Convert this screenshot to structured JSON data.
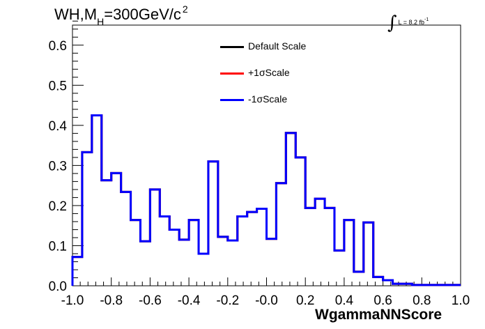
{
  "header": {
    "title_main": "WH,M",
    "title_sub": "H",
    "title_rest": "=300GeV/c",
    "title_sup": "2",
    "lumi_text": "L = 8.2 fb",
    "lumi_sup": "-1",
    "integral_sign": "∫"
  },
  "legend": {
    "items": [
      {
        "label": "Default Scale",
        "color": "#000000"
      },
      {
        "label": "+1σScale",
        "color": "#ff0000"
      },
      {
        "label": "-1σScale",
        "color": "#0000ff"
      }
    ]
  },
  "chart_data": {
    "type": "line",
    "style": "step histogram",
    "title": "WH,MH=300GeV/c2",
    "xlabel": "WgammaNNScore",
    "ylabel": "",
    "xlim": [
      -1.0,
      1.0
    ],
    "ylim": [
      0.0,
      0.65
    ],
    "x_ticks": [
      "-1.0",
      "-0.8",
      "-0.6",
      "-0.4",
      "-0.2",
      "-0.0",
      "0.2",
      "0.4",
      "0.6",
      "0.8",
      "1.0"
    ],
    "y_ticks": [
      "0.0",
      "0.1",
      "0.2",
      "0.3",
      "0.4",
      "0.5",
      "0.6"
    ],
    "bin_edges": [
      -1.0,
      -0.95,
      -0.9,
      -0.85,
      -0.8,
      -0.75,
      -0.7,
      -0.65,
      -0.6,
      -0.55,
      -0.5,
      -0.45,
      -0.4,
      -0.35,
      -0.3,
      -0.25,
      -0.2,
      -0.15,
      -0.1,
      -0.05,
      0.0,
      0.05,
      0.1,
      0.15,
      0.2,
      0.25,
      0.3,
      0.35,
      0.4,
      0.45,
      0.5,
      0.55,
      0.6,
      0.65,
      0.7,
      0.75,
      0.8,
      0.85,
      0.9,
      0.95,
      1.0
    ],
    "series": [
      {
        "name": "Default Scale",
        "color": "#000000",
        "values": [
          0.072,
          0.333,
          0.425,
          0.263,
          0.281,
          0.234,
          0.164,
          0.111,
          0.24,
          0.173,
          0.14,
          0.115,
          0.164,
          0.08,
          0.31,
          0.122,
          0.113,
          0.173,
          0.184,
          0.192,
          0.117,
          0.256,
          0.381,
          0.32,
          0.194,
          0.217,
          0.194,
          0.088,
          0.164,
          0.035,
          0.158,
          0.022,
          0.014,
          0.005,
          0.005,
          0.002,
          0.002,
          0.002,
          0.002,
          0.002
        ]
      },
      {
        "name": "+1σScale",
        "color": "#ff0000",
        "values": [
          0.072,
          0.333,
          0.425,
          0.263,
          0.281,
          0.234,
          0.164,
          0.111,
          0.24,
          0.173,
          0.14,
          0.115,
          0.164,
          0.08,
          0.31,
          0.122,
          0.113,
          0.173,
          0.184,
          0.192,
          0.117,
          0.256,
          0.381,
          0.32,
          0.194,
          0.217,
          0.194,
          0.088,
          0.164,
          0.035,
          0.158,
          0.022,
          0.014,
          0.005,
          0.005,
          0.002,
          0.002,
          0.002,
          0.002,
          0.002
        ]
      },
      {
        "name": "-1σScale",
        "color": "#0000ff",
        "values": [
          0.072,
          0.333,
          0.425,
          0.263,
          0.281,
          0.234,
          0.164,
          0.111,
          0.24,
          0.173,
          0.14,
          0.115,
          0.164,
          0.08,
          0.31,
          0.122,
          0.113,
          0.173,
          0.184,
          0.192,
          0.117,
          0.256,
          0.381,
          0.32,
          0.194,
          0.217,
          0.194,
          0.088,
          0.164,
          0.035,
          0.158,
          0.022,
          0.014,
          0.005,
          0.005,
          0.002,
          0.002,
          0.002,
          0.002,
          0.002
        ]
      }
    ],
    "grid": false,
    "legend_position": "top-center"
  }
}
